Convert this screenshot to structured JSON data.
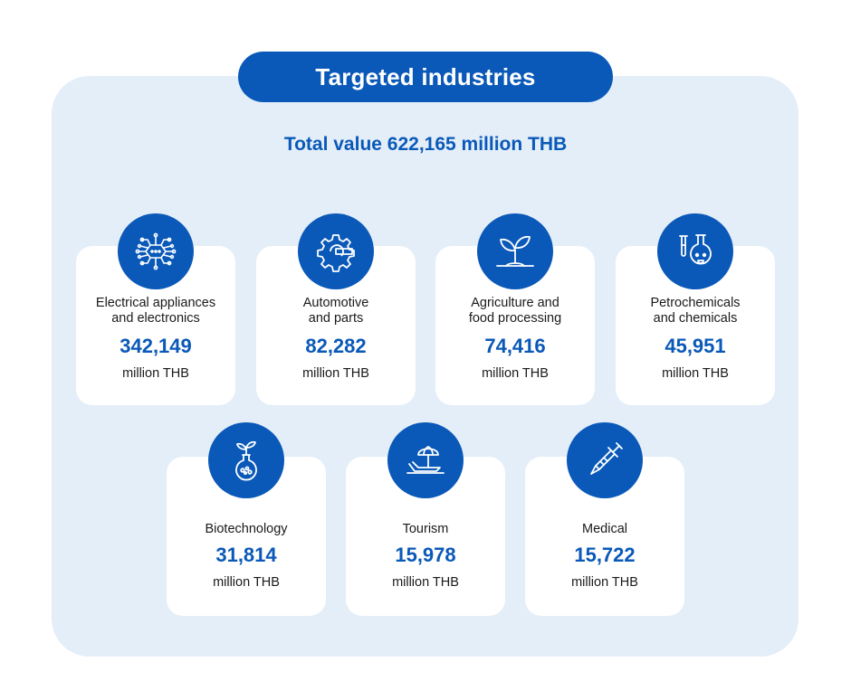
{
  "header": {
    "title": "Targeted industries"
  },
  "summary": {
    "total": "Total value 622,165 million THB"
  },
  "industries": [
    {
      "name_line1": "Electrical appliances",
      "name_line2": "and electronics",
      "value": "342,149",
      "unit": "million THB",
      "icon": "circuit-chip-icon"
    },
    {
      "name_line1": "Automotive",
      "name_line2": "and parts",
      "value": "82,282",
      "unit": "million THB",
      "icon": "gear-wrench-icon"
    },
    {
      "name_line1": "Agriculture and",
      "name_line2": "food processing",
      "value": "74,416",
      "unit": "million THB",
      "icon": "sprout-icon"
    },
    {
      "name_line1": "Petrochemicals",
      "name_line2": "and chemicals",
      "value": "45,951",
      "unit": "million THB",
      "icon": "flask-icon"
    },
    {
      "name_line1": "Biotechnology",
      "value": "31,814",
      "unit": "million THB",
      "icon": "biotech-flask-icon"
    },
    {
      "name_line1": "Tourism",
      "value": "15,978",
      "unit": "million THB",
      "icon": "beach-umbrella-icon"
    },
    {
      "name_line1": "Medical",
      "value": "15,722",
      "unit": "million THB",
      "icon": "syringe-icon"
    }
  ],
  "colors": {
    "brand": "#0a59b8",
    "panel": "#e4eef8",
    "card": "#ffffff"
  }
}
